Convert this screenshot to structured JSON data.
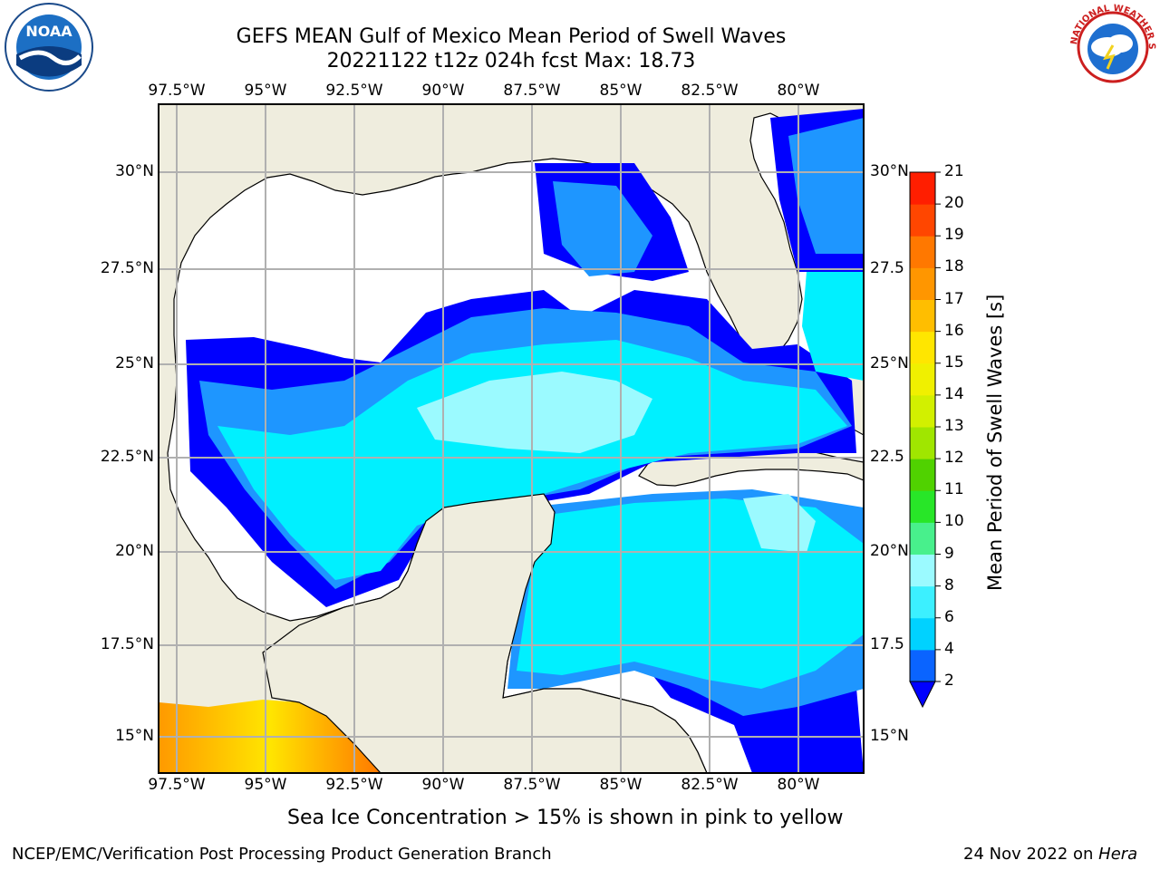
{
  "header": {
    "title_line1": "GEFS MEAN Gulf of Mexico Mean Period of Swell Waves",
    "title_line2": "20221122 t12z 024h fcst   Max: 18.73"
  },
  "map": {
    "lon_labels": [
      "97.5°W",
      "95°W",
      "92.5°W",
      "90°W",
      "87.5°W",
      "85°W",
      "82.5°W",
      "80°W"
    ],
    "lat_labels_left": [
      "30°N",
      "27.5°N",
      "25°N",
      "22.5°N",
      "20°N",
      "17.5°N",
      "15°N"
    ],
    "lat_labels_right": [
      "30°N",
      "27.5",
      "25°N",
      "22.5",
      "20°N",
      "17.5",
      "15°N"
    ],
    "land_color": "#efedde",
    "ocean_color": "#ffffff",
    "grid_color": "#b0b0b0"
  },
  "colorbar": {
    "title": "Mean Period of Swell Waves [s]",
    "ticks": [
      "2",
      "4",
      "6",
      "8",
      "9",
      "10",
      "11",
      "12",
      "13",
      "14",
      "15",
      "16",
      "17",
      "18",
      "19",
      "20",
      "21"
    ],
    "colors": [
      "#0a64ff",
      "#00d2ff",
      "#3cf0ff",
      "#9bfaff",
      "#48f08c",
      "#28e628",
      "#50d200",
      "#a0e600",
      "#d2f000",
      "#f0f000",
      "#ffe600",
      "#ffbe00",
      "#ff9600",
      "#ff7800",
      "#ff4600",
      "#ff1e00",
      "#ff0000"
    ],
    "under_color": "#0000ff"
  },
  "footer": {
    "note": "Sea Ice Concentration > 15% is shown in pink to yellow",
    "org": "NCEP/EMC/Verification Post Processing Product Generation Branch",
    "date": "24 Nov 2022 on ",
    "host": "Hera"
  },
  "logos": {
    "left": "NOAA",
    "right": "NATIONAL WEATHER SERVICE"
  }
}
